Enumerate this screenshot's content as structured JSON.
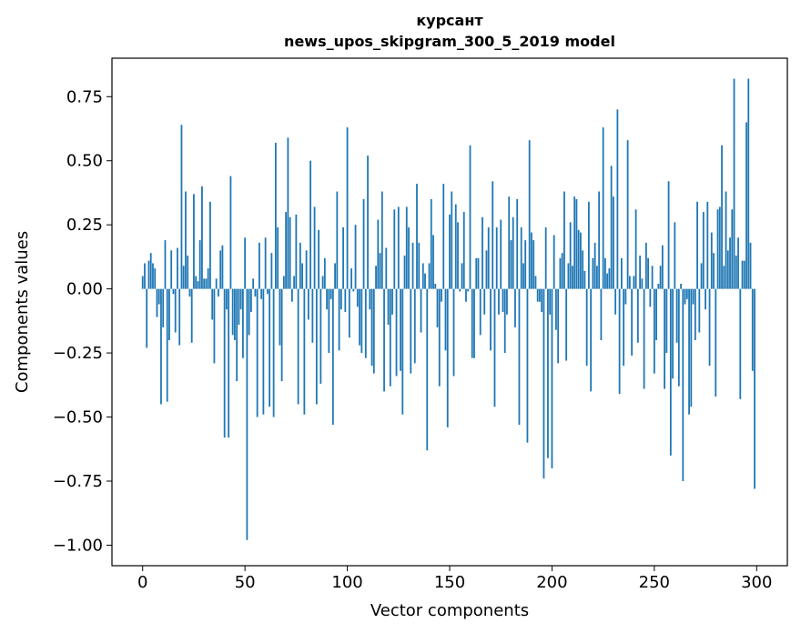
{
  "chart_data": {
    "type": "bar",
    "title": "курсант",
    "subtitle": "news_upos_skipgram_300_5_2019 model",
    "xlabel": "Vector components",
    "ylabel": "Components values",
    "xlim": [
      -15,
      315
    ],
    "ylim": [
      -1.08,
      0.9
    ],
    "xticks": [
      0,
      50,
      100,
      150,
      200,
      250,
      300
    ],
    "xtick_labels": [
      "0",
      "50",
      "100",
      "150",
      "200",
      "250",
      "300"
    ],
    "yticks": [
      0.75,
      0.5,
      0.25,
      0.0,
      -0.25,
      -0.5,
      -0.75,
      -1.0
    ],
    "ytick_labels": [
      "0.75",
      "0.50",
      "0.25",
      "0.00",
      "−0.25",
      "−0.50",
      "−0.75",
      "−1.00"
    ],
    "bar_color": "#1f77b4",
    "grid": false,
    "x": "0..299",
    "values": [
      0.05,
      0.1,
      -0.23,
      0.11,
      0.14,
      0.1,
      0.08,
      -0.11,
      -0.06,
      -0.45,
      -0.15,
      0.19,
      -0.44,
      -0.2,
      0.15,
      -0.02,
      -0.17,
      0.16,
      -0.22,
      0.64,
      0.09,
      0.38,
      0.13,
      -0.03,
      -0.21,
      0.37,
      0.05,
      0.03,
      0.19,
      0.4,
      0.04,
      0.04,
      0.08,
      0.34,
      -0.12,
      -0.29,
      0.04,
      -0.03,
      0.15,
      0.17,
      -0.58,
      -0.08,
      -0.58,
      0.44,
      -0.18,
      -0.2,
      -0.36,
      -0.14,
      -0.08,
      -0.27,
      0.2,
      -0.98,
      -0.18,
      -0.09,
      0.04,
      -0.03,
      -0.5,
      0.18,
      -0.04,
      -0.49,
      0.2,
      -0.02,
      -0.46,
      0.14,
      -0.5,
      0.57,
      0.24,
      -0.22,
      -0.36,
      0.05,
      0.3,
      0.59,
      0.28,
      -0.05,
      0.05,
      0.29,
      -0.45,
      0.18,
      0.1,
      -0.49,
      0.15,
      -0.12,
      0.5,
      -0.21,
      0.32,
      -0.45,
      0.23,
      -0.37,
      0.05,
      0.12,
      -0.08,
      -0.25,
      -0.04,
      -0.53,
      0.1,
      0.38,
      -0.24,
      -0.08,
      0.24,
      -0.09,
      0.63,
      -0.19,
      0.08,
      -0.01,
      0.25,
      -0.07,
      -0.22,
      -0.25,
      0.35,
      -0.27,
      0.52,
      -0.08,
      -0.3,
      -0.33,
      0.09,
      0.27,
      0.14,
      0.38,
      -0.4,
      0.16,
      -0.14,
      -0.38,
      -0.1,
      0.31,
      -0.34,
      0.32,
      -0.32,
      -0.49,
      0.13,
      0.32,
      0.24,
      -0.33,
      0.18,
      -0.29,
      0.41,
      0.18,
      -0.17,
      0.1,
      0.06,
      -0.63,
      0.1,
      0.35,
      0.21,
      0.02,
      -0.15,
      -0.38,
      -0.05,
      0.41,
      -0.24,
      -0.54,
      0.29,
      0.38,
      -0.34,
      0.33,
      0.26,
      -0.01,
      0.1,
      0.3,
      -0.05,
      -0.01,
      0.56,
      -0.27,
      -0.27,
      0.12,
      0.12,
      -0.18,
      0.28,
      -0.1,
      0.15,
      0.24,
      -0.24,
      0.42,
      -0.46,
      0.24,
      -0.1,
      0.27,
      -0.09,
      -0.25,
      -0.1,
      0.36,
      0.19,
      0.28,
      -0.15,
      0.35,
      -0.53,
      0.24,
      0.1,
      0.19,
      -0.6,
      0.58,
      0.22,
      0.19,
      0.05,
      -0.05,
      -0.05,
      -0.09,
      -0.74,
      0.24,
      -0.66,
      -0.1,
      -0.7,
      0.21,
      -0.16,
      -0.29,
      0.12,
      0.14,
      0.38,
      -0.28,
      0.1,
      0.26,
      0.09,
      0.36,
      0.35,
      0.23,
      0.22,
      0.15,
      0.07,
      -0.3,
      0.34,
      -0.4,
      0.12,
      0.18,
      0.09,
      0.38,
      -0.2,
      0.63,
      0.12,
      0.06,
      0.08,
      0.48,
      0.36,
      -0.1,
      0.7,
      -0.41,
      0.12,
      -0.3,
      -0.06,
      0.58,
      0.05,
      -0.26,
      0.05,
      0.31,
      -0.21,
      0.13,
      0.04,
      -0.39,
      0.18,
      0.12,
      -0.07,
      0.09,
      -0.33,
      -0.2,
      0.02,
      0.09,
      0.17,
      -0.39,
      -0.25,
      0.42,
      -0.65,
      -0.35,
      0.26,
      -0.21,
      -0.38,
      0.02,
      -0.75,
      -0.06,
      -0.04,
      -0.49,
      -0.46,
      -0.06,
      -0.2,
      0.34,
      -0.17,
      0.1,
      0.3,
      -0.08,
      0.34,
      -0.3,
      0.22,
      0.14,
      -0.42,
      0.31,
      0.32,
      0.56,
      0.09,
      0.38,
      0.15,
      0.2,
      0.31,
      0.82,
      0.13,
      0.2,
      -0.43,
      0.11,
      0.11,
      0.65,
      0.82,
      0.18,
      -0.32,
      -0.78
    ]
  }
}
